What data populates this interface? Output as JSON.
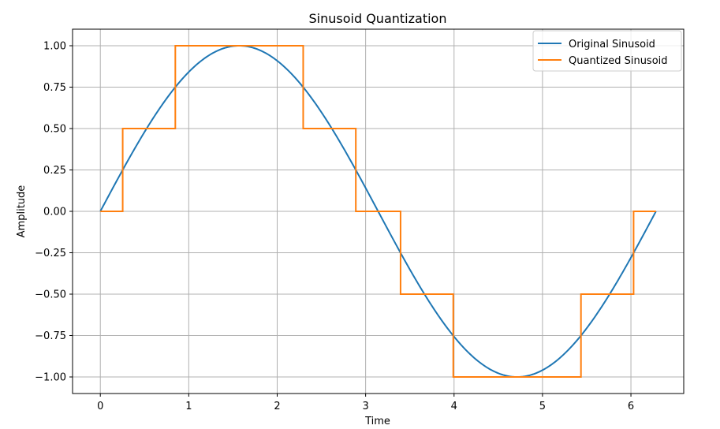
{
  "chart_data": {
    "type": "line",
    "title": "Sinusoid Quantization",
    "xlabel": "Time",
    "ylabel": "Amplitude",
    "xlim": [
      -0.314,
      6.597
    ],
    "ylim": [
      -1.1,
      1.1
    ],
    "grid": true,
    "legend_position": "top-right",
    "x_ticks": [
      {
        "value": 0,
        "label": "0"
      },
      {
        "value": 1,
        "label": "1"
      },
      {
        "value": 2,
        "label": "2"
      },
      {
        "value": 3,
        "label": "3"
      },
      {
        "value": 4,
        "label": "4"
      },
      {
        "value": 5,
        "label": "5"
      },
      {
        "value": 6,
        "label": "6"
      }
    ],
    "y_ticks": [
      {
        "value": 1.0,
        "label": "1.00"
      },
      {
        "value": 0.75,
        "label": "0.75"
      },
      {
        "value": 0.5,
        "label": "0.50"
      },
      {
        "value": 0.25,
        "label": "0.25"
      },
      {
        "value": 0.0,
        "label": "0.00"
      },
      {
        "value": -0.25,
        "label": "−0.25"
      },
      {
        "value": -0.5,
        "label": "−0.50"
      },
      {
        "value": -0.75,
        "label": "−0.75"
      },
      {
        "value": -1.0,
        "label": "−1.00"
      }
    ],
    "series": [
      {
        "name": "Original Sinusoid",
        "color": "#1f77b4",
        "function": "sin(t)",
        "x_range": [
          0,
          6.283
        ]
      },
      {
        "name": "Quantized Sinusoid",
        "color": "#ff7f0e",
        "x": [
          0,
          0.253,
          0.253,
          0.848,
          0.848,
          2.294,
          2.294,
          2.889,
          2.889,
          3.395,
          3.395,
          3.991,
          3.991,
          5.435,
          5.435,
          6.03,
          6.03,
          6.283
        ],
        "y": [
          0,
          0,
          0.5,
          0.5,
          1.0,
          1.0,
          0.5,
          0.5,
          0,
          0,
          -0.5,
          -0.5,
          -1.0,
          -1.0,
          -0.5,
          -0.5,
          0,
          0
        ]
      }
    ]
  }
}
